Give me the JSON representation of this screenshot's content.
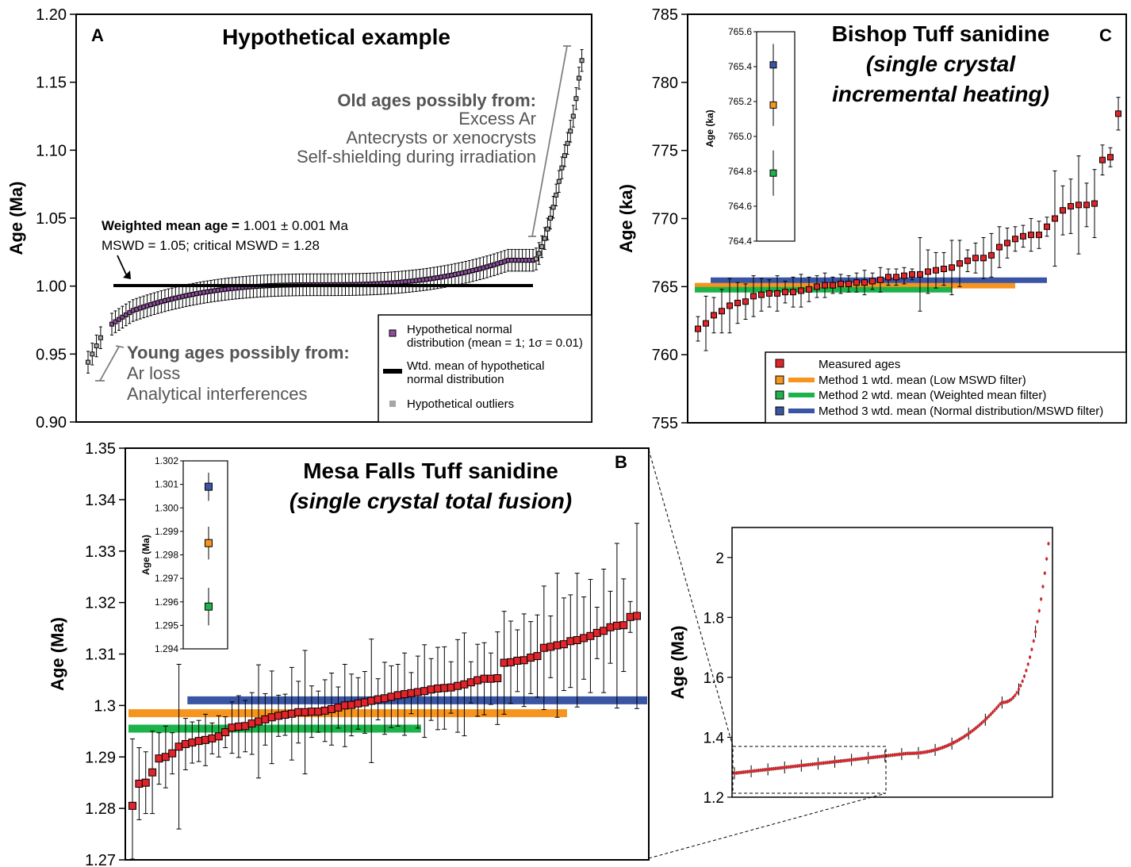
{
  "chart_data": [
    {
      "panel": "A",
      "type": "scatter",
      "title": "Hypothetical example",
      "ylabel": "Age (Ma)",
      "ylim": [
        0.9,
        1.2
      ],
      "yticks": [
        "0.90",
        "0.95",
        "1.00",
        "1.05",
        "1.10",
        "1.15",
        "1.20"
      ],
      "weighted_mean": 1.001,
      "annotations": {
        "weighted_mean_bold": "Weighted mean age =",
        "weighted_mean_value": " 1.001 ± 0.001 Ma",
        "mswd": "MSWD = 1.05; critical MSWD = 1.28",
        "old_head": "Old ages possibly from:",
        "old_lines": [
          "Excess Ar",
          "Antecrysts or xenocrysts",
          "Self-shielding during irradiation"
        ],
        "young_head": "Young ages possibly from:",
        "young_lines": [
          "Ar loss",
          "Analytical interferences"
        ]
      },
      "legend": [
        "Hypothetical normal distribution (mean = 1; 1σ = 0.01)",
        "Wtd. mean of hypothetical normal distribution",
        "Hypothetical outliers"
      ],
      "legend_lines": [
        [
          "Hypothetical normal",
          "distribution (mean = 1; 1σ = 0.01)"
        ],
        [
          "Wtd. mean of hypothetical",
          "normal distribution"
        ],
        [
          "Hypothetical outliers"
        ]
      ],
      "normal_count": 120,
      "normal_range": [
        0.972,
        1.019
      ],
      "error": 0.008,
      "outliers_low": [
        0.944,
        0.95,
        0.956,
        0.962
      ],
      "outliers_high": [
        1.02,
        1.024,
        1.029,
        1.035,
        1.042,
        1.05,
        1.058,
        1.067,
        1.077,
        1.087,
        1.096,
        1.105,
        1.114,
        1.125,
        1.138,
        1.153,
        1.166
      ],
      "colors": {
        "normal": "#8d4e9d",
        "outlier": "#a6a6a6",
        "mean": "#000000"
      }
    },
    {
      "panel": "B",
      "type": "scatter",
      "title": "Mesa Falls Tuff sanidine",
      "subtitle": "(single crystal total fusion)",
      "ylabel": "Age (Ma)",
      "ylim": [
        1.27,
        1.35
      ],
      "yticks": [
        "1.27",
        "1.28",
        "1.29",
        "1.3",
        "1.31",
        "1.32",
        "1.33",
        "1.34",
        "1.35"
      ],
      "values": [
        1.2805,
        1.2848,
        1.285,
        1.287,
        1.2897,
        1.29,
        1.2907,
        1.292,
        1.2925,
        1.2928,
        1.2931,
        1.2933,
        1.2936,
        1.294,
        1.2948,
        1.2957,
        1.2959,
        1.296,
        1.2965,
        1.2969,
        1.2973,
        1.2977,
        1.298,
        1.2982,
        1.2984,
        1.2987,
        1.2987,
        1.2988,
        1.2988,
        1.299,
        1.2993,
        1.2996,
        1.3,
        1.3001,
        1.3004,
        1.3006,
        1.3009,
        1.3012,
        1.3014,
        1.3017,
        1.302,
        1.3022,
        1.3024,
        1.3026,
        1.3028,
        1.3031,
        1.3033,
        1.3034,
        1.3035,
        1.3038,
        1.3041,
        1.3045,
        1.3049,
        1.3052,
        1.3052,
        1.3053,
        1.3083,
        1.3084,
        1.3087,
        1.3088,
        1.3093,
        1.3096,
        1.3112,
        1.3114,
        1.3117,
        1.3119,
        1.3125,
        1.3127,
        1.3131,
        1.3135,
        1.3141,
        1.3145,
        1.3152,
        1.3155,
        1.3156,
        1.3172,
        1.3174
      ],
      "errors": [
        0.013,
        0.007,
        0.006,
        0.008,
        0.005,
        0.006,
        0.004,
        0.016,
        0.005,
        0.004,
        0.004,
        0.005,
        0.003,
        0.004,
        0.003,
        0.005,
        0.006,
        0.005,
        0.006,
        0.011,
        0.005,
        0.009,
        0.004,
        0.004,
        0.009,
        0.006,
        0.012,
        0.005,
        0.004,
        0.006,
        0.007,
        0.004,
        0.008,
        0.006,
        0.005,
        0.006,
        0.012,
        0.004,
        0.007,
        0.006,
        0.006,
        0.008,
        0.004,
        0.007,
        0.009,
        0.006,
        0.008,
        0.008,
        0.005,
        0.009,
        0.01,
        0.004,
        0.007,
        0.007,
        0.005,
        0.009,
        0.01,
        0.008,
        0.006,
        0.009,
        0.007,
        0.008,
        0.012,
        0.006,
        0.014,
        0.009,
        0.009,
        0.013,
        0.008,
        0.011,
        0.005,
        0.012,
        0.007,
        0.016,
        0.009,
        0.003,
        0.018
      ],
      "wtd_means": [
        {
          "method": "Method 1",
          "value": 1.2985,
          "x_end_index": 65,
          "color": "#f7941d"
        },
        {
          "method": "Method 2",
          "value": 1.2955,
          "x_end_index": 43,
          "color": "#1bb34a"
        },
        {
          "method": "Method 3",
          "value": 1.301,
          "x_start_index": 9,
          "x_end_index": 78,
          "color": "#3955a4"
        }
      ],
      "inset": {
        "ylabel": "Age (Ma)",
        "ylim": [
          1.294,
          1.302
        ],
        "yticks": [
          "1.294",
          "1.295",
          "1.296",
          "1.297",
          "1.298",
          "1.299",
          "1.300",
          "1.301",
          "1.302"
        ],
        "points": [
          {
            "value": 1.3009,
            "error": 0.0006,
            "color": "#3955a4"
          },
          {
            "value": 1.2985,
            "error": 0.0007,
            "color": "#f7941d"
          },
          {
            "value": 1.2958,
            "error": 0.0008,
            "color": "#1bb34a"
          }
        ]
      },
      "overview": {
        "ylabel": "Age (Ma)",
        "ylim": [
          1.2,
          2.1
        ],
        "yticks": [
          "1.2",
          "1.4",
          "1.6",
          "1.8",
          "2"
        ],
        "note": "Full dataset; dashed box marks enlarged region"
      }
    },
    {
      "panel": "C",
      "type": "scatter",
      "title_lines": [
        "Bishop Tuff sanidine",
        "(single crystal",
        "incremental heating)"
      ],
      "ylabel": "Age (ka)",
      "ylim": [
        755,
        785
      ],
      "yticks": [
        "755",
        "760",
        "765",
        "770",
        "775",
        "780",
        "785"
      ],
      "values": [
        761.9,
        762.3,
        762.9,
        763.2,
        763.6,
        763.8,
        763.9,
        764.3,
        764.4,
        764.5,
        764.5,
        764.6,
        764.6,
        764.7,
        764.8,
        765.0,
        765.1,
        765.1,
        765.2,
        765.2,
        765.3,
        765.3,
        765.4,
        765.5,
        765.7,
        765.7,
        765.8,
        765.9,
        765.9,
        766.1,
        766.2,
        766.3,
        766.4,
        766.7,
        766.9,
        767.1,
        767.1,
        767.3,
        767.9,
        768.2,
        768.5,
        768.7,
        768.8,
        768.8,
        769.4,
        770.0,
        770.6,
        770.9,
        771.0,
        771.0,
        771.1,
        774.3,
        774.5,
        777.7
      ],
      "errors": [
        0.9,
        2.0,
        1.3,
        1.6,
        2.0,
        1.5,
        1.3,
        1.5,
        1.2,
        1.0,
        1.3,
        0.8,
        1.1,
        1.2,
        0.9,
        0.8,
        0.9,
        0.6,
        0.7,
        0.6,
        0.7,
        0.9,
        0.6,
        0.9,
        0.6,
        0.6,
        0.6,
        0.4,
        2.7,
        1.6,
        1.3,
        1.2,
        2.0,
        1.7,
        0.8,
        1.1,
        1.5,
        1.6,
        1.5,
        1.1,
        0.9,
        0.8,
        1.2,
        1.0,
        0.7,
        3.5,
        1.8,
        2.0,
        3.6,
        1.6,
        2.5,
        1.1,
        0.7,
        1.2
      ],
      "wtd_means": [
        {
          "method": "Method 1",
          "value": 765.1,
          "x_end_index": 40,
          "color": "#f7941d"
        },
        {
          "method": "Method 2",
          "value": 764.8,
          "x_end_index": 32,
          "color": "#1bb34a"
        },
        {
          "method": "Method 3",
          "value": 765.5,
          "x_start_index": 2,
          "x_end_index": 44,
          "color": "#3955a4"
        }
      ],
      "legend": [
        "Measured ages",
        "Method 1 wtd. mean (Low MSWD filter)",
        "Method 2 wtd. mean (Weighted mean filter)",
        "Method 3 wtd. mean (Normal distribution/MSWD filter)"
      ],
      "inset": {
        "ylabel": "Age (ka)",
        "ylim": [
          764.4,
          765.6
        ],
        "yticks": [
          "764.4",
          "764.6",
          "764.8",
          "765.0",
          "765.2",
          "765.4",
          "765.6"
        ],
        "points": [
          {
            "value": 765.41,
            "error": 0.12,
            "color": "#3955a4"
          },
          {
            "value": 765.18,
            "error": 0.12,
            "color": "#f7941d"
          },
          {
            "value": 764.79,
            "error": 0.13,
            "color": "#1bb34a"
          }
        ]
      }
    }
  ]
}
